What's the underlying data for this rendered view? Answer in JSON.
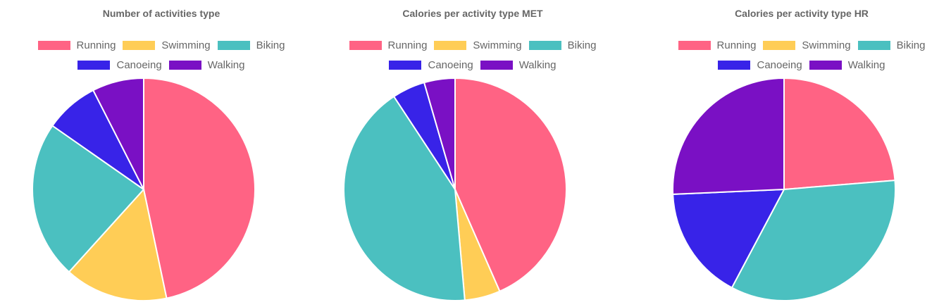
{
  "colors": {
    "Running": "#ff6384",
    "Swimming": "#ffcd56",
    "Biking": "#4bc0c0",
    "Canoeing": "#3823e8",
    "Walking": "#7a10c4"
  },
  "chart_data": [
    {
      "type": "pie",
      "title": "Number of activities type",
      "categories": [
        "Running",
        "Swimming",
        "Biking",
        "Canoeing",
        "Walking"
      ],
      "values": [
        46.7,
        15.0,
        23.0,
        7.8,
        7.5
      ],
      "legend_position": "top"
    },
    {
      "type": "pie",
      "title": "Calories per activity type MET",
      "categories": [
        "Running",
        "Swimming",
        "Biking",
        "Canoeing",
        "Walking"
      ],
      "values": [
        43.6,
        5.2,
        42.3,
        4.8,
        4.5
      ],
      "legend_position": "top"
    },
    {
      "type": "pie",
      "title": "Calories per activity type HR",
      "categories": [
        "Running",
        "Swimming",
        "Biking",
        "Canoeing",
        "Walking"
      ],
      "values": [
        23.8,
        0,
        34.2,
        16.6,
        25.8
      ],
      "legend_position": "top"
    }
  ]
}
